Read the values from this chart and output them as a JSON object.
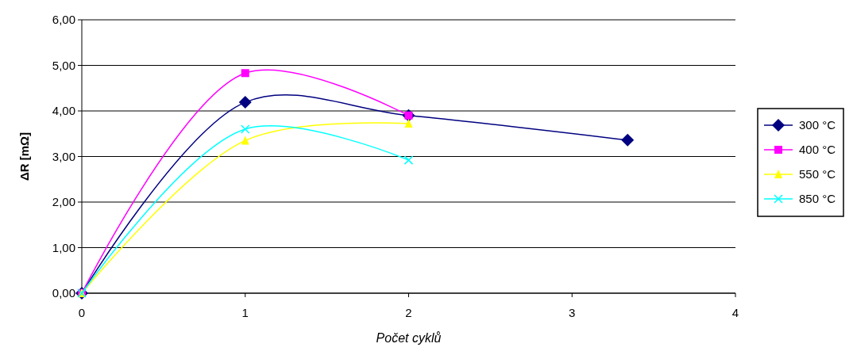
{
  "chart_data": {
    "type": "line",
    "xlabel": "Počet cyklů",
    "ylabel": "ΔR [mΩ]",
    "xlim": [
      0,
      4
    ],
    "xticks": [
      0,
      1,
      2,
      3,
      4
    ],
    "ylim": [
      0,
      6
    ],
    "yticks": [
      {
        "value": 0,
        "label": "0,00"
      },
      {
        "value": 1,
        "label": "1,00"
      },
      {
        "value": 2,
        "label": "2,00"
      },
      {
        "value": 3,
        "label": "3,00"
      },
      {
        "value": 4,
        "label": "4,00"
      },
      {
        "value": 5,
        "label": "5,00"
      },
      {
        "value": 6,
        "label": "6,00"
      }
    ],
    "grid": "y",
    "legend": "right",
    "series": [
      {
        "name": "300 °C",
        "color": "#000080",
        "marker": "diamond",
        "x": [
          0,
          1,
          2,
          3.34
        ],
        "values": [
          0,
          4.19,
          3.9,
          3.36
        ]
      },
      {
        "name": "400 °C",
        "color": "#ff00ff",
        "marker": "square",
        "x": [
          0,
          1,
          2
        ],
        "values": [
          0,
          4.83,
          3.9
        ]
      },
      {
        "name": "550 °C",
        "color": "#ffff00",
        "marker": "triangle",
        "x": [
          0,
          1,
          2
        ],
        "values": [
          0,
          3.35,
          3.72
        ]
      },
      {
        "name": "850 °C",
        "color": "#00ffff",
        "marker": "cross",
        "x": [
          0,
          1,
          2
        ],
        "values": [
          0,
          3.6,
          2.92
        ]
      }
    ]
  }
}
